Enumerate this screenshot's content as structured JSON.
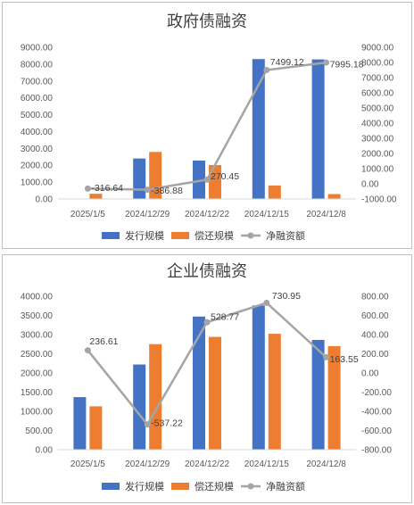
{
  "chart_data": [
    {
      "type": "bar",
      "title": "政府债融资",
      "categories": [
        "2025/1/5",
        "2024/12/29",
        "2024/12/22",
        "2024/12/15",
        "2024/12/8"
      ],
      "series": [
        {
          "name": "发行规模",
          "type": "bar",
          "axis": "left",
          "color": "#4472C4",
          "values": [
            0,
            2400,
            2280,
            8300,
            8280
          ]
        },
        {
          "name": "偿还规模",
          "type": "bar",
          "axis": "left",
          "color": "#ED7D31",
          "values": [
            310,
            2790,
            2010,
            800,
            290
          ]
        },
        {
          "name": "净融资额",
          "type": "line",
          "axis": "right",
          "color": "#A5A5A5",
          "values": [
            -316.64,
            -386.88,
            270.45,
            7499.12,
            7995.18
          ],
          "labels": [
            "-316.64",
            "-386.88",
            "270.45",
            "7499.12",
            "7995.18"
          ]
        }
      ],
      "y_left": {
        "min": 0,
        "max": 9000,
        "step": 1000,
        "ticks": [
          "0.00",
          "1000.00",
          "2000.00",
          "3000.00",
          "4000.00",
          "5000.00",
          "6000.00",
          "7000.00",
          "8000.00",
          "9000.00"
        ]
      },
      "y_right": {
        "min": -1000,
        "max": 9000,
        "step": 1000,
        "ticks": [
          "-1000.00",
          "0.00",
          "1000.00",
          "2000.00",
          "3000.00",
          "4000.00",
          "5000.00",
          "6000.00",
          "7000.00",
          "8000.00",
          "9000.00"
        ]
      },
      "grid": false,
      "legend": "bottom"
    },
    {
      "type": "bar",
      "title": "企业债融资",
      "categories": [
        "2025/1/5",
        "2024/12/29",
        "2024/12/22",
        "2024/12/15",
        "2024/12/8"
      ],
      "series": [
        {
          "name": "发行规模",
          "type": "bar",
          "axis": "left",
          "color": "#4472C4",
          "values": [
            1370,
            2220,
            3470,
            3760,
            2860
          ]
        },
        {
          "name": "偿还规模",
          "type": "bar",
          "axis": "left",
          "color": "#ED7D31",
          "values": [
            1130,
            2750,
            2940,
            3020,
            2700
          ]
        },
        {
          "name": "净融资额",
          "type": "line",
          "axis": "right",
          "color": "#A5A5A5",
          "values": [
            236.61,
            -537.22,
            528.77,
            730.95,
            163.55
          ],
          "labels": [
            "236.61",
            "-537.22",
            "528.77",
            "730.95",
            "163.55"
          ]
        }
      ],
      "y_left": {
        "min": 0,
        "max": 4000,
        "step": 500,
        "ticks": [
          "0.00",
          "500.00",
          "1000.00",
          "1500.00",
          "2000.00",
          "2500.00",
          "3000.00",
          "3500.00",
          "4000.00"
        ]
      },
      "y_right": {
        "min": -800,
        "max": 800,
        "step": 200,
        "ticks": [
          "-800.00",
          "-600.00",
          "-400.00",
          "-200.00",
          "0.00",
          "200.00",
          "400.00",
          "600.00",
          "800.00"
        ]
      },
      "grid": false,
      "legend": "bottom"
    }
  ]
}
